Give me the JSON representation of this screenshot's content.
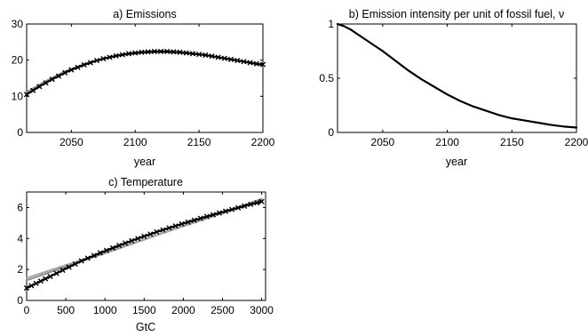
{
  "chart_data": [
    {
      "type": "line",
      "title": "a) Emissions",
      "xlabel": "year",
      "ylabel": "",
      "xlim": [
        2015,
        2200
      ],
      "ylim": [
        0,
        30
      ],
      "xticks": [
        2050,
        2100,
        2150,
        2200
      ],
      "yticks": [
        0,
        10,
        20,
        30
      ],
      "grid": false,
      "series": [
        {
          "style": "black-line-with-cross-markers",
          "color": "#000000",
          "x": [
            2015,
            2020,
            2025,
            2030,
            2035,
            2040,
            2045,
            2050,
            2055,
            2060,
            2065,
            2070,
            2075,
            2080,
            2085,
            2090,
            2095,
            2100,
            2105,
            2110,
            2115,
            2120,
            2125,
            2130,
            2135,
            2140,
            2145,
            2150,
            2155,
            2160,
            2165,
            2170,
            2175,
            2180,
            2185,
            2190,
            2195,
            2200
          ],
          "y": [
            10.5,
            11.6,
            12.7,
            13.7,
            14.7,
            15.6,
            16.5,
            17.3,
            18.0,
            18.7,
            19.3,
            19.9,
            20.4,
            20.8,
            21.2,
            21.5,
            21.8,
            22.0,
            22.2,
            22.3,
            22.4,
            22.4,
            22.4,
            22.3,
            22.2,
            22.0,
            21.8,
            21.6,
            21.4,
            21.1,
            20.8,
            20.5,
            20.2,
            19.9,
            19.6,
            19.3,
            19.0,
            18.8
          ]
        },
        {
          "style": "gray-line",
          "color": "#8c8c8c",
          "x": [
            2015,
            2030,
            2045,
            2060,
            2075,
            2090,
            2105,
            2120,
            2135,
            2150,
            2165,
            2180,
            2200
          ],
          "y": [
            11.2,
            14.2,
            16.9,
            18.9,
            20.4,
            21.4,
            22.0,
            22.2,
            22.0,
            21.6,
            20.8,
            19.9,
            18.5
          ]
        }
      ]
    },
    {
      "type": "line",
      "title": "b) Emission intensity per unit of fossil fuel, ν",
      "xlabel": "year",
      "ylabel": "",
      "xlim": [
        2015,
        2200
      ],
      "ylim": [
        0,
        1
      ],
      "xticks": [
        2050,
        2100,
        2150,
        2200
      ],
      "yticks": [
        0,
        0.5,
        1
      ],
      "grid": false,
      "series": [
        {
          "style": "black-line",
          "color": "#000000",
          "x": [
            2015,
            2020,
            2025,
            2030,
            2040,
            2050,
            2060,
            2070,
            2080,
            2090,
            2100,
            2110,
            2120,
            2130,
            2140,
            2150,
            2160,
            2170,
            2180,
            2190,
            2200
          ],
          "y": [
            1.0,
            0.98,
            0.95,
            0.91,
            0.83,
            0.75,
            0.66,
            0.57,
            0.49,
            0.42,
            0.35,
            0.29,
            0.24,
            0.2,
            0.16,
            0.13,
            0.11,
            0.09,
            0.07,
            0.055,
            0.045
          ]
        }
      ]
    },
    {
      "type": "line",
      "title": "c) Temperature",
      "xlabel": "GtC",
      "ylabel": "",
      "xlim": [
        0,
        3050
      ],
      "ylim": [
        0,
        7
      ],
      "xticks": [
        0,
        500,
        1000,
        1500,
        2000,
        2500,
        3000
      ],
      "yticks": [
        0,
        2,
        4,
        6
      ],
      "grid": false,
      "series": [
        {
          "style": "black-line-with-cross-markers",
          "color": "#000000",
          "x": [
            0,
            60,
            120,
            180,
            240,
            300,
            380,
            460,
            540,
            620,
            700,
            780,
            860,
            940,
            1020,
            1100,
            1180,
            1260,
            1340,
            1420,
            1500,
            1580,
            1660,
            1740,
            1820,
            1900,
            1980,
            2060,
            2140,
            2220,
            2300,
            2380,
            2460,
            2540,
            2620,
            2700,
            2780,
            2860,
            2940,
            3000
          ],
          "y": [
            0.8,
            0.95,
            1.1,
            1.25,
            1.4,
            1.55,
            1.75,
            1.95,
            2.15,
            2.35,
            2.55,
            2.73,
            2.9,
            3.07,
            3.23,
            3.39,
            3.55,
            3.7,
            3.85,
            4.0,
            4.14,
            4.28,
            4.42,
            4.55,
            4.68,
            4.81,
            4.94,
            5.06,
            5.18,
            5.3,
            5.42,
            5.53,
            5.65,
            5.76,
            5.87,
            5.98,
            6.09,
            6.2,
            6.3,
            6.38
          ]
        },
        {
          "style": "gray-line",
          "color": "#8c8c8c",
          "x": [
            0,
            3000
          ],
          "y": [
            1.3,
            6.55
          ]
        },
        {
          "style": "gray-line",
          "color": "#a8a8a8",
          "x": [
            0,
            3000
          ],
          "y": [
            1.45,
            6.45
          ]
        }
      ]
    }
  ]
}
